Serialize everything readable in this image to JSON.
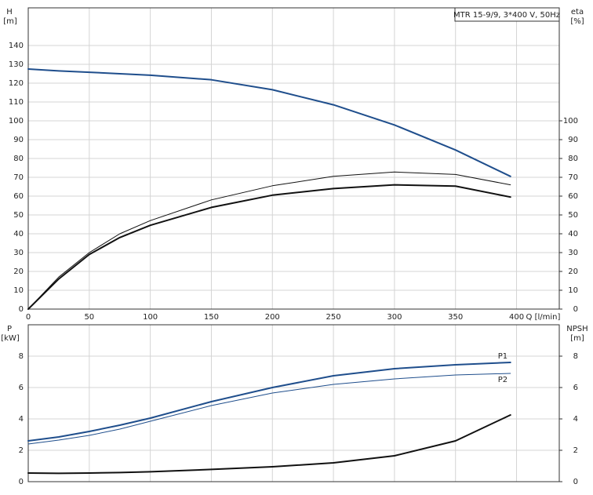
{
  "chart_data": [
    {
      "type": "line",
      "title": "MTR 15-9/9, 3*400 V, 50Hz",
      "ylabel": "H",
      "yunit": "[m]",
      "y2label": "eta",
      "y2unit": "[%]",
      "xlabel": "Q [l/min]",
      "x": [
        0,
        25,
        50,
        75,
        100,
        150,
        200,
        250,
        300,
        350,
        395
      ],
      "xlim": [
        0,
        435
      ],
      "xticks": [
        0,
        50,
        100,
        150,
        200,
        250,
        300,
        350,
        400
      ],
      "ylim": [
        0,
        160
      ],
      "yticks": [
        0,
        10,
        20,
        30,
        40,
        50,
        60,
        70,
        80,
        90,
        100,
        110,
        120,
        130,
        140
      ],
      "y2lim": [
        0,
        160
      ],
      "y2ticks": [
        0,
        10,
        20,
        30,
        40,
        50,
        60,
        70,
        80,
        90,
        100
      ],
      "grid": true,
      "xtick_labels": true,
      "series": [
        {
          "color": "#1f4e8c",
          "line_width": 2,
          "values": [
            127.5,
            126.5,
            125.8,
            125,
            124.2,
            121.8,
            116.5,
            108.5,
            97.8,
            84.5,
            70.5
          ]
        },
        {
          "color": "#111111",
          "line_width": 1,
          "axis": "y2",
          "values": [
            0,
            17,
            30,
            40,
            47,
            58,
            65.5,
            70.5,
            72.8,
            71.5,
            66
          ]
        },
        {
          "color": "#111111",
          "line_width": 2,
          "axis": "y2",
          "values": [
            0,
            16,
            29,
            38,
            44.5,
            54,
            60.5,
            64,
            66,
            65.3,
            59.5
          ]
        }
      ]
    },
    {
      "type": "line",
      "ylabel": "P",
      "yunit": "[kW]",
      "y2label": "NPSH",
      "y2unit": "[m]",
      "x": [
        0,
        25,
        50,
        75,
        100,
        150,
        200,
        250,
        300,
        350,
        395
      ],
      "xlim": [
        0,
        435
      ],
      "xticks": [
        0,
        50,
        100,
        150,
        200,
        250,
        300,
        350,
        400
      ],
      "ylim": [
        0,
        10
      ],
      "yticks": [
        0,
        2,
        4,
        6,
        8
      ],
      "y2lim": [
        0,
        10
      ],
      "y2ticks": [
        0,
        2,
        4,
        6,
        8
      ],
      "grid": true,
      "xtick_labels": false,
      "series": [
        {
          "name": "P1",
          "color": "#1f4e8c",
          "line_width": 2,
          "values": [
            2.6,
            2.85,
            3.2,
            3.6,
            4.05,
            5.1,
            6.0,
            6.75,
            7.2,
            7.45,
            7.6
          ]
        },
        {
          "name": "P2",
          "color": "#1f4e8c",
          "line_width": 1,
          "values": [
            2.4,
            2.65,
            2.95,
            3.35,
            3.85,
            4.85,
            5.65,
            6.2,
            6.55,
            6.8,
            6.9
          ]
        },
        {
          "color": "#111111",
          "line_width": 2,
          "axis": "y2",
          "values": [
            0.55,
            0.53,
            0.55,
            0.58,
            0.63,
            0.78,
            0.95,
            1.2,
            1.65,
            2.6,
            4.25
          ]
        }
      ]
    }
  ]
}
